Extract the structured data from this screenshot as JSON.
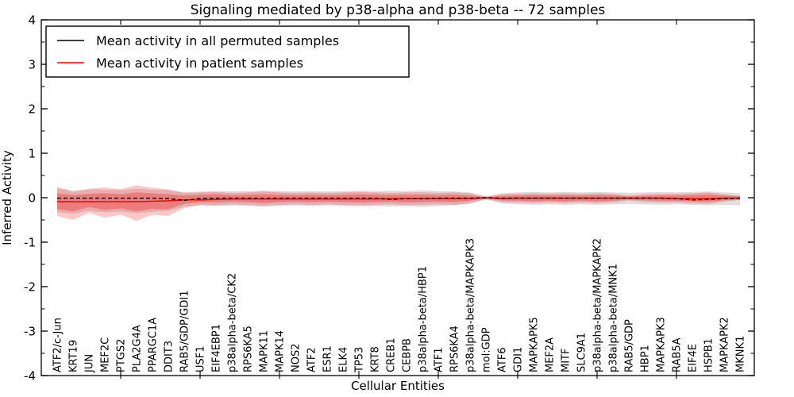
{
  "title": "Signaling mediated by p38-alpha and p38-beta -- 72 samples",
  "axes": {
    "xlabel": "Cellular Entities",
    "ylabel": "Inferred Activity",
    "ylim": [
      -4,
      4
    ],
    "yticks": [
      4,
      3,
      2,
      1,
      0,
      -1,
      -2,
      -3,
      -4
    ],
    "ytick_labels": [
      "4",
      "3",
      "2",
      "1",
      "0",
      "-1",
      "-2",
      "-3",
      "-4"
    ],
    "yticks_minor": [
      3.5,
      2.5,
      1.5,
      0.5,
      -0.5,
      -1.5,
      -2.5,
      -3.5
    ],
    "frame_tick_indices": [
      4,
      9,
      14,
      19,
      24,
      29,
      34,
      39
    ]
  },
  "legend": {
    "entries": [
      {
        "label": "Mean activity in all permuted samples",
        "color": "#000000",
        "dash": "5,3"
      },
      {
        "label": "Mean activity in patient samples",
        "color": "#ff0000",
        "dash": ""
      }
    ]
  },
  "chart_data": {
    "type": "line",
    "title": "Signaling mediated by p38-alpha and p38-beta -- 72 samples",
    "xlabel": "Cellular Entities",
    "ylabel": "Inferred Activity",
    "ylim": [
      -4,
      4
    ],
    "grid": false,
    "legend_position": "upper left",
    "categories": [
      "ATF2/c-Jun",
      "KRT19",
      "JUN",
      "MEF2C",
      "PTGS2",
      "PLA2G4A",
      "PPARGC1A",
      "DDIT3",
      "RAB5/GDP/GDI1",
      "USF1",
      "EIF4EBP1",
      "p38alpha-beta/CK2",
      "RPS6KA5",
      "MAPK11",
      "MAPK14",
      "NOS2",
      "ATF2",
      "ESR1",
      "ELK4",
      "TP53",
      "KRT8",
      "CREB1",
      "CEBPB",
      "p38alpha-beta/HBP1",
      "ATF1",
      "RPS6KA4",
      "p38alpha-beta/MAPKAPK3",
      "mol:GDP",
      "ATF6",
      "GDI1",
      "MAPKAPK5",
      "MEF2A",
      "MITF",
      "SLC9A1",
      "p38alpha-beta/MAPKAPK2",
      "p38alpha-beta/MNK1",
      "RAB5/GDP",
      "HBP1",
      "MAPKAPK3",
      "RAB5A",
      "EIF4E",
      "HSPB1",
      "MAPKAPK2",
      "MKNK1"
    ],
    "series": [
      {
        "name": "Mean activity in all permuted samples",
        "color": "#000000",
        "dash": "5,3",
        "width": 1.4,
        "values": [
          -0.01,
          -0.01,
          -0.01,
          -0.01,
          -0.01,
          -0.01,
          -0.01,
          -0.02,
          -0.06,
          -0.02,
          -0.01,
          -0.01,
          -0.01,
          -0.01,
          -0.01,
          -0.01,
          -0.01,
          -0.01,
          -0.01,
          -0.01,
          -0.01,
          -0.04,
          -0.02,
          -0.02,
          -0.01,
          -0.01,
          -0.01,
          0.0,
          -0.01,
          -0.01,
          -0.01,
          -0.01,
          -0.01,
          -0.01,
          -0.01,
          -0.01,
          -0.01,
          -0.01,
          -0.01,
          -0.02,
          -0.05,
          -0.04,
          -0.02,
          -0.01
        ]
      },
      {
        "name": "Mean activity in patient samples",
        "color": "#ff0000",
        "dash": "",
        "width": 1.5,
        "values": [
          -0.09,
          -0.09,
          -0.09,
          -0.09,
          -0.09,
          -0.09,
          -0.08,
          -0.07,
          -0.05,
          -0.05,
          -0.04,
          -0.03,
          -0.03,
          -0.03,
          -0.03,
          -0.03,
          -0.03,
          -0.03,
          -0.03,
          -0.03,
          -0.03,
          -0.02,
          -0.02,
          -0.02,
          -0.02,
          -0.02,
          -0.02,
          0.0,
          -0.02,
          -0.01,
          -0.01,
          -0.01,
          -0.01,
          -0.01,
          -0.01,
          -0.01,
          -0.01,
          -0.01,
          -0.01,
          -0.02,
          -0.02,
          -0.02,
          -0.01,
          -0.01
        ]
      }
    ],
    "bands": [
      {
        "name": "permuted-sample-range",
        "color": "#808080",
        "opacity": 0.25,
        "upper": [
          0.2,
          0.17,
          0.19,
          0.18,
          0.17,
          0.2,
          0.18,
          0.17,
          0.12,
          0.14,
          0.15,
          0.14,
          0.15,
          0.16,
          0.15,
          0.14,
          0.15,
          0.14,
          0.15,
          0.16,
          0.15,
          0.16,
          0.15,
          0.17,
          0.15,
          0.14,
          0.12,
          0.04,
          0.1,
          0.12,
          0.13,
          0.12,
          0.13,
          0.12,
          0.13,
          0.12,
          0.11,
          0.12,
          0.13,
          0.12,
          0.13,
          0.14,
          0.12,
          0.1
        ],
        "lower": [
          -0.33,
          -0.36,
          -0.3,
          -0.33,
          -0.31,
          -0.35,
          -0.32,
          -0.3,
          -0.2,
          -0.18,
          -0.19,
          -0.18,
          -0.19,
          -0.2,
          -0.19,
          -0.18,
          -0.19,
          -0.18,
          -0.19,
          -0.2,
          -0.19,
          -0.2,
          -0.19,
          -0.21,
          -0.19,
          -0.17,
          -0.14,
          -0.05,
          -0.13,
          -0.15,
          -0.16,
          -0.15,
          -0.16,
          -0.15,
          -0.16,
          -0.15,
          -0.14,
          -0.15,
          -0.16,
          -0.15,
          -0.16,
          -0.17,
          -0.16,
          -0.17
        ]
      },
      {
        "name": "patient-sample-outer",
        "color": "#ff0000",
        "opacity": 0.22,
        "upper": [
          0.25,
          0.13,
          0.2,
          0.23,
          0.19,
          0.28,
          0.22,
          0.19,
          0.11,
          0.12,
          0.13,
          0.11,
          0.12,
          0.14,
          0.12,
          0.11,
          0.12,
          0.11,
          0.12,
          0.13,
          0.12,
          0.11,
          0.12,
          0.12,
          0.11,
          0.12,
          0.1,
          0.02,
          0.08,
          0.09,
          0.1,
          0.09,
          0.1,
          0.09,
          0.1,
          0.09,
          0.05,
          0.08,
          0.09,
          0.09,
          0.1,
          0.12,
          0.08,
          0.04
        ],
        "lower": [
          -0.41,
          -0.5,
          -0.34,
          -0.45,
          -0.38,
          -0.52,
          -0.38,
          -0.41,
          -0.23,
          -0.16,
          -0.17,
          -0.15,
          -0.16,
          -0.18,
          -0.16,
          -0.15,
          -0.16,
          -0.15,
          -0.16,
          -0.17,
          -0.16,
          -0.15,
          -0.17,
          -0.16,
          -0.15,
          -0.16,
          -0.12,
          -0.03,
          -0.1,
          -0.11,
          -0.12,
          -0.11,
          -0.12,
          -0.11,
          -0.12,
          -0.11,
          -0.06,
          -0.1,
          -0.11,
          -0.11,
          -0.13,
          -0.14,
          -0.09,
          -0.05
        ]
      },
      {
        "name": "patient-sample-inner",
        "color": "#ff0000",
        "opacity": 0.28,
        "upper": [
          0.1,
          0.06,
          0.09,
          0.1,
          0.08,
          0.12,
          0.1,
          0.08,
          0.05,
          0.07,
          0.08,
          0.06,
          0.07,
          0.08,
          0.07,
          0.06,
          0.07,
          0.06,
          0.07,
          0.08,
          0.07,
          0.06,
          0.07,
          0.07,
          0.06,
          0.07,
          0.05,
          0.01,
          0.04,
          0.05,
          0.06,
          0.05,
          0.06,
          0.05,
          0.06,
          0.05,
          0.03,
          0.04,
          0.05,
          0.05,
          0.06,
          0.07,
          0.05,
          0.03
        ],
        "lower": [
          -0.26,
          -0.31,
          -0.21,
          -0.28,
          -0.24,
          -0.31,
          -0.25,
          -0.26,
          -0.14,
          -0.1,
          -0.11,
          -0.09,
          -0.1,
          -0.12,
          -0.1,
          -0.09,
          -0.1,
          -0.09,
          -0.1,
          -0.11,
          -0.1,
          -0.09,
          -0.11,
          -0.1,
          -0.09,
          -0.1,
          -0.07,
          -0.02,
          -0.06,
          -0.07,
          -0.08,
          -0.07,
          -0.08,
          -0.07,
          -0.08,
          -0.07,
          -0.04,
          -0.06,
          -0.07,
          -0.07,
          -0.08,
          -0.09,
          -0.06,
          -0.04
        ]
      }
    ]
  }
}
